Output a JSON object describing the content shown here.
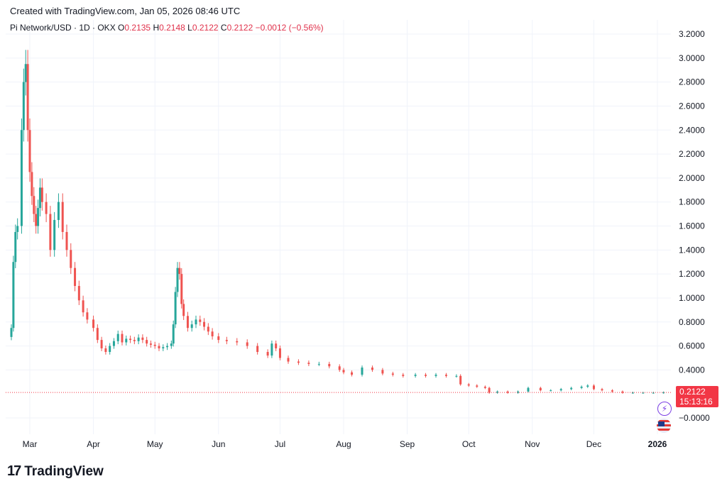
{
  "header": {
    "created": "Created with TradingView.com, Jan 05, 2026 08:46 UTC"
  },
  "legend": {
    "symbol": "Pi Network/USD · 1D · OKX",
    "o_label": "O",
    "o_value": "0.2135",
    "h_label": "H",
    "h_value": "0.2148",
    "l_label": "L",
    "l_value": "0.2122",
    "c_label": "C",
    "c_value": "0.2122",
    "change": "−0.0012 (−0.56%)"
  },
  "price_tag": {
    "price": "0.2122",
    "countdown": "15:13:16"
  },
  "footer": {
    "logo_mark": "17",
    "logo_text": "TradingView"
  },
  "icons": {
    "bolt": "lightning-icon",
    "flag": "us-flag-icon"
  },
  "colors": {
    "up": "#26a69a",
    "down": "#ef5350",
    "price_line": "#f23645",
    "grid": "#f0f3fa"
  },
  "chart_data": {
    "type": "candlestick",
    "y_ticks": [
      "3.2000",
      "3.0000",
      "2.8000",
      "2.6000",
      "2.4000",
      "2.2000",
      "2.0000",
      "1.8000",
      "1.6000",
      "1.4000",
      "1.2000",
      "1.0000",
      "0.8000",
      "0.6000",
      "0.4000",
      "−0.0000"
    ],
    "y_tick_values": [
      3.2,
      3.0,
      2.8,
      2.6,
      2.4,
      2.2,
      2.0,
      1.8,
      1.6,
      1.4,
      1.2,
      1.0,
      0.8,
      0.6,
      0.4,
      0.0
    ],
    "ylim": [
      0.0,
      3.2
    ],
    "x_ticks": [
      "Mar",
      "Apr",
      "May",
      "Jun",
      "Jul",
      "Aug",
      "Sep",
      "Oct",
      "Nov",
      "Dec",
      "2026"
    ],
    "x_tick_dates": [
      "2025-03-01",
      "2025-04-01",
      "2025-05-01",
      "2025-06-01",
      "2025-07-01",
      "2025-08-01",
      "2025-09-01",
      "2025-10-01",
      "2025-11-01",
      "2025-12-01",
      "2026-01-01"
    ],
    "last_price": 0.2122,
    "grid": true,
    "price_series": [
      [
        "2025-02-20",
        0.75
      ],
      [
        "2025-02-21",
        1.3
      ],
      [
        "2025-02-22",
        1.55
      ],
      [
        "2025-02-23",
        1.6
      ],
      [
        "2025-02-25",
        2.4
      ],
      [
        "2025-02-26",
        2.8
      ],
      [
        "2025-02-27",
        2.95
      ],
      [
        "2025-02-28",
        2.4
      ],
      [
        "2025-03-01",
        2.05
      ],
      [
        "2025-03-02",
        1.85
      ],
      [
        "2025-03-03",
        1.7
      ],
      [
        "2025-03-04",
        1.6
      ],
      [
        "2025-03-05",
        1.75
      ],
      [
        "2025-03-06",
        1.92
      ],
      [
        "2025-03-07",
        1.8
      ],
      [
        "2025-03-09",
        1.7
      ],
      [
        "2025-03-11",
        1.4
      ],
      [
        "2025-03-13",
        1.65
      ],
      [
        "2025-03-15",
        1.8
      ],
      [
        "2025-03-17",
        1.55
      ],
      [
        "2025-03-19",
        1.4
      ],
      [
        "2025-03-21",
        1.25
      ],
      [
        "2025-03-23",
        1.1
      ],
      [
        "2025-03-25",
        0.98
      ],
      [
        "2025-03-27",
        0.88
      ],
      [
        "2025-03-29",
        0.82
      ],
      [
        "2025-04-01",
        0.75
      ],
      [
        "2025-04-03",
        0.65
      ],
      [
        "2025-04-05",
        0.58
      ],
      [
        "2025-04-07",
        0.55
      ],
      [
        "2025-04-09",
        0.6
      ],
      [
        "2025-04-11",
        0.64
      ],
      [
        "2025-04-13",
        0.7
      ],
      [
        "2025-04-15",
        0.63
      ],
      [
        "2025-04-17",
        0.66
      ],
      [
        "2025-04-19",
        0.65
      ],
      [
        "2025-04-21",
        0.64
      ],
      [
        "2025-04-23",
        0.67
      ],
      [
        "2025-04-25",
        0.65
      ],
      [
        "2025-04-27",
        0.62
      ],
      [
        "2025-04-29",
        0.61
      ],
      [
        "2025-05-01",
        0.6
      ],
      [
        "2025-05-03",
        0.58
      ],
      [
        "2025-05-05",
        0.59
      ],
      [
        "2025-05-07",
        0.6
      ],
      [
        "2025-05-09",
        0.62
      ],
      [
        "2025-05-10",
        0.78
      ],
      [
        "2025-05-11",
        1.05
      ],
      [
        "2025-05-12",
        1.25
      ],
      [
        "2025-05-13",
        1.2
      ],
      [
        "2025-05-14",
        0.95
      ],
      [
        "2025-05-15",
        0.85
      ],
      [
        "2025-05-17",
        0.75
      ],
      [
        "2025-05-19",
        0.78
      ],
      [
        "2025-05-21",
        0.82
      ],
      [
        "2025-05-23",
        0.8
      ],
      [
        "2025-05-25",
        0.76
      ],
      [
        "2025-05-27",
        0.72
      ],
      [
        "2025-05-29",
        0.68
      ],
      [
        "2025-06-01",
        0.65
      ],
      [
        "2025-06-05",
        0.64
      ],
      [
        "2025-06-10",
        0.63
      ],
      [
        "2025-06-15",
        0.6
      ],
      [
        "2025-06-20",
        0.55
      ],
      [
        "2025-06-25",
        0.52
      ],
      [
        "2025-06-27",
        0.62
      ],
      [
        "2025-06-29",
        0.58
      ],
      [
        "2025-07-01",
        0.5
      ],
      [
        "2025-07-05",
        0.47
      ],
      [
        "2025-07-10",
        0.46
      ],
      [
        "2025-07-15",
        0.45
      ],
      [
        "2025-07-20",
        0.45
      ],
      [
        "2025-07-25",
        0.43
      ],
      [
        "2025-07-30",
        0.4
      ],
      [
        "2025-08-01",
        0.38
      ],
      [
        "2025-08-05",
        0.36
      ],
      [
        "2025-08-10",
        0.42
      ],
      [
        "2025-08-15",
        0.4
      ],
      [
        "2025-08-20",
        0.37
      ],
      [
        "2025-08-25",
        0.36
      ],
      [
        "2025-08-30",
        0.35
      ],
      [
        "2025-09-05",
        0.36
      ],
      [
        "2025-09-10",
        0.35
      ],
      [
        "2025-09-15",
        0.36
      ],
      [
        "2025-09-20",
        0.35
      ],
      [
        "2025-09-25",
        0.35
      ],
      [
        "2025-09-27",
        0.28
      ],
      [
        "2025-10-01",
        0.27
      ],
      [
        "2025-10-05",
        0.26
      ],
      [
        "2025-10-09",
        0.25
      ],
      [
        "2025-10-11",
        0.21
      ],
      [
        "2025-10-15",
        0.22
      ],
      [
        "2025-10-20",
        0.21
      ],
      [
        "2025-10-25",
        0.22
      ],
      [
        "2025-10-30",
        0.25
      ],
      [
        "2025-11-05",
        0.23
      ],
      [
        "2025-11-10",
        0.23
      ],
      [
        "2025-11-15",
        0.24
      ],
      [
        "2025-11-20",
        0.25
      ],
      [
        "2025-11-25",
        0.26
      ],
      [
        "2025-11-28",
        0.27
      ],
      [
        "2025-12-01",
        0.24
      ],
      [
        "2025-12-05",
        0.23
      ],
      [
        "2025-12-10",
        0.22
      ],
      [
        "2025-12-15",
        0.21
      ],
      [
        "2025-12-20",
        0.21
      ],
      [
        "2025-12-25",
        0.21
      ],
      [
        "2025-12-30",
        0.21
      ],
      [
        "2026-01-04",
        0.2122
      ]
    ]
  }
}
